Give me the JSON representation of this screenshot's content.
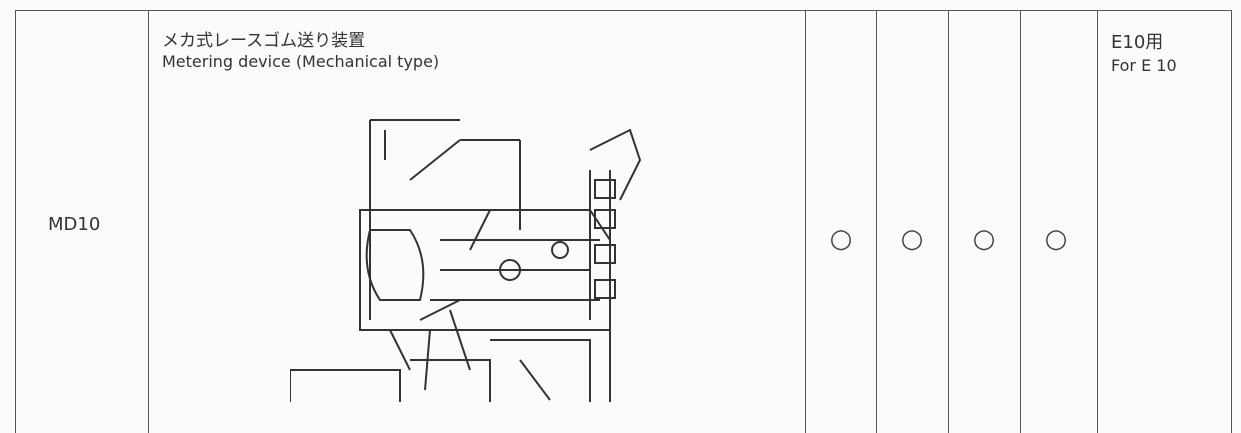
{
  "table": {
    "rows": [
      {
        "code": "MD10",
        "name_ja": "メカ式レースゴム送り装置",
        "name_en": "Metering device (Mechanical type)",
        "marks": [
          "○",
          "○",
          "○",
          "○"
        ],
        "note_ja": "E10用",
        "note_en": "For E 10"
      }
    ]
  }
}
